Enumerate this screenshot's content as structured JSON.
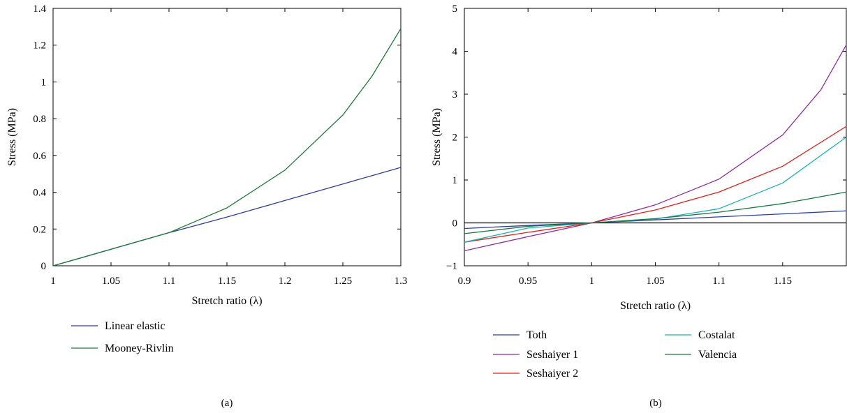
{
  "chart_data": [
    {
      "type": "line",
      "panel_label": "(a)",
      "xlabel": "Stretch ratio (λ)",
      "ylabel": "Stress (MPa)",
      "xlim": [
        1,
        1.3
      ],
      "ylim": [
        0,
        1.4
      ],
      "xticks": [
        1,
        1.05,
        1.1,
        1.15,
        1.2,
        1.25,
        1.3
      ],
      "yticks": [
        0,
        0.2,
        0.4,
        0.6,
        0.8,
        1,
        1.2,
        1.4
      ],
      "xtick_labels": [
        "1",
        "1.05",
        "1.1",
        "1.15",
        "1.2",
        "1.25",
        "1.3"
      ],
      "ytick_labels": [
        "0",
        "0.2",
        "0.4",
        "0.6",
        "0.8",
        "1",
        "1.2",
        "1.4"
      ],
      "grid": false,
      "legend_position": "below",
      "series": [
        {
          "name": "Linear elastic",
          "color": "#2b3f9e",
          "x": [
            1,
            1.05,
            1.1,
            1.15,
            1.2,
            1.25,
            1.3
          ],
          "y": [
            0,
            0.09,
            0.18,
            0.265,
            0.355,
            0.445,
            0.535
          ]
        },
        {
          "name": "Mooney-Rivlin",
          "color": "#1f7a3a",
          "x": [
            1,
            1.05,
            1.1,
            1.15,
            1.2,
            1.25,
            1.275,
            1.3
          ],
          "y": [
            0,
            0.09,
            0.18,
            0.315,
            0.52,
            0.82,
            1.03,
            1.29
          ]
        }
      ]
    },
    {
      "type": "line",
      "panel_label": "(b)",
      "xlabel": "Stretch ratio (λ)",
      "ylabel": "Stress (MPa)",
      "xlim": [
        0.9,
        1.2
      ],
      "ylim": [
        -1,
        5
      ],
      "xticks": [
        0.9,
        0.95,
        1,
        1.05,
        1.1,
        1.15
      ],
      "yticks": [
        -1,
        0,
        1,
        2,
        3,
        4,
        5
      ],
      "xtick_labels": [
        "0.9",
        "0.95",
        "1",
        "1.05",
        "1.1",
        "1.15"
      ],
      "ytick_labels": [
        "−1",
        "0",
        "1",
        "2",
        "3",
        "4",
        "5"
      ],
      "zero_line": true,
      "grid": false,
      "legend_position": "below",
      "series": [
        {
          "name": "Toth",
          "color": "#2b3f9e",
          "x": [
            0.9,
            0.95,
            1,
            1.05,
            1.1,
            1.15,
            1.2
          ],
          "y": [
            -0.13,
            -0.06,
            0,
            0.07,
            0.14,
            0.21,
            0.28
          ]
        },
        {
          "name": "Seshaiyer 1",
          "color": "#8e2f9e",
          "x": [
            0.9,
            0.95,
            1,
            1.05,
            1.1,
            1.15,
            1.18,
            1.2
          ],
          "y": [
            -0.65,
            -0.32,
            0,
            0.42,
            1.02,
            2.05,
            3.1,
            4.15
          ]
        },
        {
          "name": "Seshaiyer 2",
          "color": "#e0201b",
          "x": [
            0.9,
            0.95,
            1,
            1.05,
            1.1,
            1.15,
            1.2
          ],
          "y": [
            -0.45,
            -0.22,
            0,
            0.3,
            0.72,
            1.32,
            2.25
          ]
        },
        {
          "name": "Costalat",
          "color": "#19b3b3",
          "x": [
            0.9,
            0.95,
            1,
            1.05,
            1.1,
            1.15,
            1.2
          ],
          "y": [
            -0.45,
            -0.12,
            0,
            0.09,
            0.33,
            0.93,
            2.0
          ]
        },
        {
          "name": "Valencia",
          "color": "#1a7a42",
          "x": [
            0.9,
            0.95,
            1,
            1.05,
            1.1,
            1.15,
            1.2
          ],
          "y": [
            -0.25,
            -0.08,
            0,
            0.1,
            0.25,
            0.45,
            0.72
          ]
        }
      ]
    }
  ]
}
